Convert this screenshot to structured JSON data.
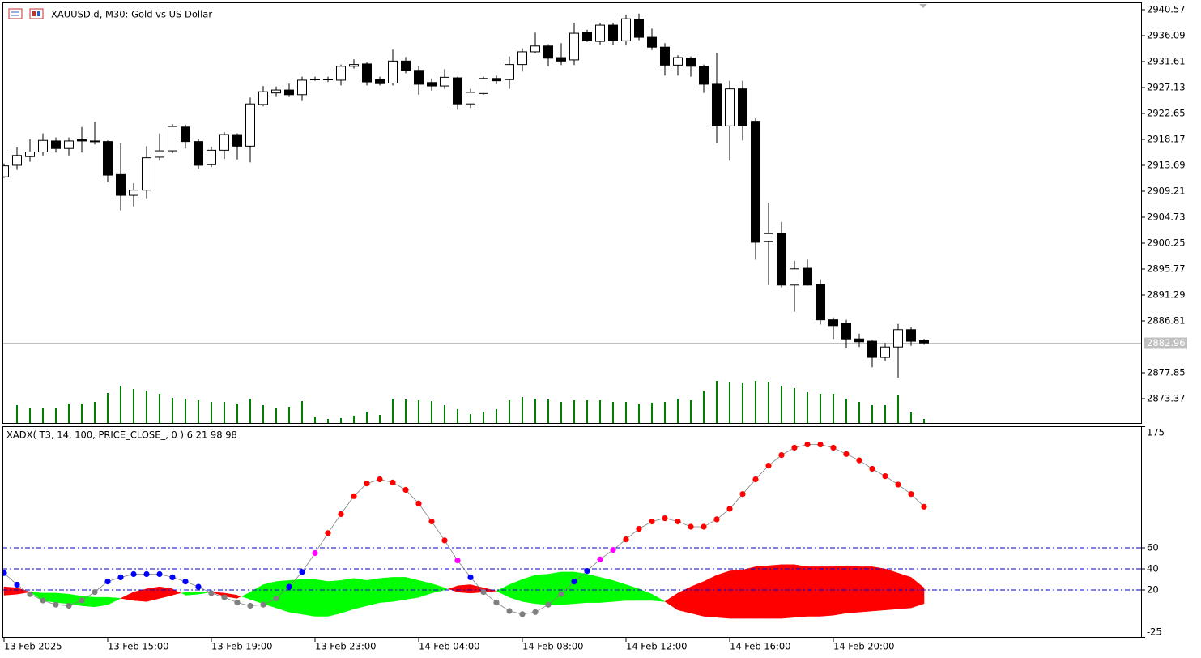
{
  "chart_data": [
    {
      "type": "candlestick",
      "title": "XAUUSD.d, M30:  Gold vs US Dollar",
      "categories": [
        "13 Feb 2025",
        null,
        null,
        null,
        null,
        null,
        null,
        null,
        "13 Feb 15:00",
        null,
        null,
        null,
        null,
        null,
        null,
        null,
        "13 Feb 19:00",
        null,
        null,
        null,
        null,
        null,
        null,
        null,
        "13 Feb 23:00",
        null,
        null,
        null,
        null,
        null,
        null,
        null,
        "14 Feb 04:00",
        null,
        null,
        null,
        null,
        null,
        null,
        null,
        "14 Feb 08:00",
        null,
        null,
        null,
        null,
        null,
        null,
        null,
        "14 Feb 12:00",
        null,
        null,
        null,
        null,
        null,
        null,
        null,
        "14 Feb 16:00",
        null,
        null,
        null,
        null,
        null,
        null,
        null,
        "14 Feb 20:00",
        null,
        null,
        null,
        null,
        null,
        null,
        null
      ],
      "open": [
        2911.7,
        2913.7,
        2915.2,
        2916.0,
        2917.9,
        2916.6,
        2918.1,
        2917.9,
        2917.8,
        2912.1,
        2908.5,
        2909.4,
        2915.1,
        2916.2,
        2920.3,
        2917.8,
        2913.8,
        2916.3,
        2919.0,
        2917.0,
        2924.2,
        2926.2,
        2926.7,
        2925.9,
        2928.5,
        2928.5,
        2928.4,
        2930.8,
        2931.2,
        2928.5,
        2927.9,
        2931.7,
        2930.1,
        2928.0,
        2927.4,
        2928.8,
        2924.3,
        2926.1,
        2928.7,
        2928.5,
        2931.1,
        2933.3,
        2934.3,
        2932.3,
        2931.9,
        2936.7,
        2935.1,
        2937.9,
        2935.2,
        2938.9,
        2935.8,
        2934.1,
        2931.0,
        2932.2,
        2930.8,
        2927.7,
        2920.5,
        2926.9,
        2921.3,
        2900.5,
        2901.9,
        2893.0,
        2895.9,
        2893.1,
        2887.0,
        2886.4,
        2883.7,
        2883.3,
        2880.5,
        2882.3,
        2885.3,
        2883.4
      ],
      "high": [
        2914.0,
        2916.8,
        2918.2,
        2919.2,
        2918.5,
        2918.5,
        2920.3,
        2921.2,
        2918.0,
        2917.5,
        2910.6,
        2917.0,
        2919.2,
        2920.8,
        2920.7,
        2918.2,
        2916.9,
        2919.4,
        2919.2,
        2925.4,
        2927.4,
        2927.3,
        2927.8,
        2929.0,
        2929.0,
        2929.0,
        2931.1,
        2932.0,
        2931.5,
        2929.0,
        2933.7,
        2932.4,
        2930.8,
        2928.7,
        2930.3,
        2929.0,
        2926.9,
        2929.0,
        2929.2,
        2932.5,
        2933.9,
        2936.6,
        2934.6,
        2934.8,
        2938.3,
        2937.1,
        2938.3,
        2938.3,
        2939.7,
        2939.9,
        2937.3,
        2934.8,
        2932.7,
        2932.5,
        2931.1,
        2933.1,
        2928.3,
        2928.3,
        2921.8,
        2907.2,
        2903.9,
        2897.2,
        2897.4,
        2894.0,
        2887.4,
        2887.0,
        2884.6,
        2883.5,
        2883.0,
        2886.3,
        2885.7,
        2883.7
      ],
      "low": [
        2911.5,
        2912.9,
        2914.3,
        2915.4,
        2915.9,
        2915.4,
        2915.9,
        2917.3,
        2910.8,
        2905.9,
        2906.6,
        2908.0,
        2914.5,
        2915.8,
        2916.6,
        2913.0,
        2913.4,
        2914.8,
        2914.7,
        2914.2,
        2923.9,
        2925.5,
        2925.5,
        2924.8,
        2928.3,
        2928.1,
        2927.5,
        2930.4,
        2927.5,
        2927.5,
        2927.5,
        2929.6,
        2925.9,
        2926.6,
        2926.9,
        2923.3,
        2923.6,
        2925.9,
        2927.7,
        2926.9,
        2929.9,
        2933.1,
        2930.8,
        2931.0,
        2931.0,
        2935.0,
        2934.5,
        2934.5,
        2934.4,
        2935.3,
        2933.6,
        2929.2,
        2929.2,
        2929.0,
        2926.2,
        2917.5,
        2914.5,
        2918.0,
        2897.4,
        2893.0,
        2892.6,
        2888.4,
        2892.9,
        2886.2,
        2883.7,
        2882.1,
        2882.3,
        2878.8,
        2879.9,
        2877.0,
        2882.5,
        2882.7
      ],
      "close": [
        2913.6,
        2915.4,
        2916.0,
        2918.0,
        2916.6,
        2917.9,
        2917.9,
        2917.8,
        2912.0,
        2908.5,
        2909.4,
        2915.0,
        2916.2,
        2920.4,
        2917.8,
        2913.7,
        2916.3,
        2919.0,
        2917.0,
        2924.3,
        2926.4,
        2926.7,
        2925.9,
        2928.4,
        2928.6,
        2928.6,
        2930.8,
        2931.1,
        2928.1,
        2927.8,
        2931.7,
        2930.1,
        2927.7,
        2927.4,
        2928.9,
        2924.3,
        2926.3,
        2928.7,
        2928.3,
        2931.1,
        2933.3,
        2934.3,
        2932.2,
        2931.7,
        2936.5,
        2935.2,
        2937.9,
        2935.2,
        2939.0,
        2935.8,
        2934.1,
        2931.0,
        2932.3,
        2930.8,
        2927.7,
        2920.5,
        2926.9,
        2920.5,
        2900.4,
        2901.9,
        2893.0,
        2895.8,
        2893.0,
        2887.0,
        2886.0,
        2883.7,
        2883.2,
        2880.5,
        2882.3,
        2885.3,
        2883.3,
        2883.0
      ],
      "volume": [
        null,
        22,
        18,
        18,
        18,
        24,
        24,
        26,
        37,
        46,
        42,
        40,
        36,
        31,
        30,
        28,
        26,
        26,
        24,
        30,
        22,
        18,
        20,
        27,
        7,
        5,
        6,
        9,
        14,
        10,
        30,
        29,
        28,
        27,
        22,
        17,
        11,
        14,
        17,
        28,
        32,
        30,
        29,
        26,
        28,
        28,
        28,
        26,
        26,
        23,
        25,
        26,
        30,
        28,
        39,
        52,
        50,
        49,
        52,
        51,
        46,
        43,
        38,
        36,
        36,
        30,
        26,
        22,
        22,
        34,
        13,
        5
      ],
      "volume_color": "#008000",
      "up_color": "#ffffff",
      "down_color": "#000000",
      "ylim": [
        2869.03,
        2941.69
      ],
      "yticks": [
        2940.57,
        2936.09,
        2931.61,
        2927.13,
        2922.65,
        2918.17,
        2913.69,
        2909.21,
        2904.73,
        2900.25,
        2895.77,
        2891.29,
        2886.81,
        2877.85,
        2873.37
      ],
      "last_price": 2882.96
    },
    {
      "type": "oscillator",
      "title": "XADX( T3, 14, 100, PRICE_CLOSE_, 0 ) 6 21 98 98",
      "series": [
        {
          "color": "#808080",
          "values": [
            36,
            25,
            16,
            10,
            6,
            5,
            10,
            18,
            28,
            32,
            35,
            35,
            35,
            32,
            28,
            23,
            17,
            13,
            8,
            5,
            6,
            12,
            23,
            37,
            55,
            74,
            92,
            109,
            121,
            125,
            122,
            115,
            102,
            85,
            67,
            48,
            32,
            18,
            8,
            0,
            -3,
            -1,
            6,
            16,
            28,
            38,
            49,
            58,
            68,
            78,
            85,
            88,
            85,
            80,
            80,
            87,
            97,
            111,
            125,
            138,
            148,
            155,
            158,
            158,
            155,
            149,
            143,
            135,
            128,
            120,
            111,
            99
          ],
          "point_colors": [
            "#0000ff",
            "#0000ff",
            "#808080",
            "#808080",
            "#808080",
            "#808080",
            "#808080",
            "#808080",
            "#0000ff",
            "#0000ff",
            "#0000ff",
            "#0000ff",
            "#0000ff",
            "#0000ff",
            "#0000ff",
            "#0000ff",
            "#808080",
            "#808080",
            "#808080",
            "#808080",
            "#808080",
            "#808080",
            "#0000ff",
            "#0000ff",
            "#ff00ff",
            "#ff0000",
            "#ff0000",
            "#ff0000",
            "#ff0000",
            "#ff0000",
            "#ff0000",
            "#ff0000",
            "#ff0000",
            "#ff0000",
            "#ff0000",
            "#ff00ff",
            "#0000ff",
            "#808080",
            "#808080",
            "#808080",
            "#808080",
            "#808080",
            "#808080",
            "#808080",
            "#0000ff",
            "#0000ff",
            "#ff00ff",
            "#ff00ff",
            "#ff0000",
            "#ff0000",
            "#ff0000",
            "#ff0000",
            "#ff0000",
            "#ff0000",
            "#ff0000",
            "#ff0000",
            "#ff0000",
            "#ff0000",
            "#ff0000",
            "#ff0000",
            "#ff0000",
            "#ff0000",
            "#ff0000",
            "#ff0000",
            "#ff0000",
            "#ff0000",
            "#ff0000",
            "#ff0000",
            "#ff0000",
            "#ff0000",
            "#ff0000",
            "#ff0000"
          ]
        }
      ],
      "band": {
        "a": [
          15,
          16,
          18,
          17,
          17,
          16,
          14,
          13,
          13,
          12,
          10,
          9,
          12,
          15,
          18,
          18,
          18,
          14,
          12,
          18,
          25,
          28,
          29,
          30,
          30,
          28,
          29,
          31,
          29,
          31,
          32,
          32,
          29,
          26,
          22,
          18,
          17,
          18,
          19,
          25,
          30,
          34,
          35,
          37,
          37,
          35,
          32,
          29,
          25,
          21,
          16,
          9,
          1,
          -2,
          -5,
          -6,
          -7,
          -7,
          -7,
          -7,
          -7,
          -6,
          -5,
          -5,
          -4,
          -2,
          -1,
          0,
          1,
          2,
          3,
          7
        ],
        "b": [
          23,
          22,
          18,
          10,
          8,
          7,
          5,
          4,
          6,
          12,
          18,
          21,
          23,
          21,
          15,
          16,
          18,
          17,
          15,
          11,
          7,
          3,
          -1,
          -3,
          -5,
          -5,
          -2,
          2,
          5,
          8,
          9,
          11,
          13,
          17,
          20,
          24,
          25,
          22,
          19,
          13,
          9,
          7,
          6,
          6,
          7,
          8,
          8,
          9,
          10,
          10,
          10,
          9,
          17,
          23,
          28,
          34,
          38,
          39,
          42,
          43,
          44,
          44,
          42,
          42,
          42,
          43,
          42,
          42,
          40,
          36,
          32,
          22
        ],
        "colors": [
          "#00ff00",
          "#ff0000"
        ]
      },
      "levels": [
        60,
        40,
        20
      ],
      "level_color": "#0000cd",
      "ylim": [
        -25,
        175
      ],
      "yticks": [
        175,
        60,
        40,
        20,
        -25
      ]
    }
  ]
}
